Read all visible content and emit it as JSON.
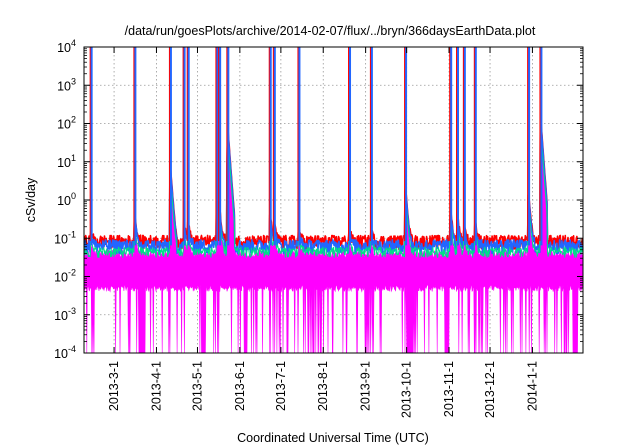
{
  "chart_data": {
    "type": "line",
    "title": "/data/run/goesPlots/archive/2014-02-07/flux/../bryn/366daysEarthData.plot",
    "xlabel": "Coordinated Universal Time (UTC)",
    "ylabel": "cSv/day",
    "y_scale": "log",
    "ylim": [
      0.0001,
      10000
    ],
    "y_ticks": [
      {
        "exp": "-4",
        "value": 0.0001
      },
      {
        "exp": "-3",
        "value": 0.001
      },
      {
        "exp": "-2",
        "value": 0.01
      },
      {
        "exp": "-1",
        "value": 0.1
      },
      {
        "exp": "0",
        "value": 1
      },
      {
        "exp": "1",
        "value": 10
      },
      {
        "exp": "2",
        "value": 100
      },
      {
        "exp": "3",
        "value": 1000
      },
      {
        "exp": "4",
        "value": 10000
      }
    ],
    "y_tick_base": "10",
    "xlim": [
      "2013-02-07",
      "2014-02-07"
    ],
    "x_ticks": [
      {
        "label": "2013-3-1",
        "date": "2013-03-01"
      },
      {
        "label": "2013-4-1",
        "date": "2013-04-01"
      },
      {
        "label": "2013-5-1",
        "date": "2013-05-01"
      },
      {
        "label": "2013-6-1",
        "date": "2013-06-01"
      },
      {
        "label": "2013-7-1",
        "date": "2013-07-01"
      },
      {
        "label": "2013-8-1",
        "date": "2013-08-01"
      },
      {
        "label": "2013-9-1",
        "date": "2013-09-01"
      },
      {
        "label": "2013-10-1",
        "date": "2013-10-01"
      },
      {
        "label": "2013-11-1",
        "date": "2013-11-01"
      },
      {
        "label": "2013-12-1",
        "date": "2013-12-01"
      },
      {
        "label": "2014-1-1",
        "date": "2014-01-01"
      }
    ],
    "grid": true,
    "series": [
      {
        "color": "#ff0000",
        "baseline": 0.085,
        "peak_factor": 1.0
      },
      {
        "color": "#2266ff",
        "baseline": 0.065,
        "peak_factor": 0.85
      },
      {
        "color": "#00dd88",
        "baseline": 0.045,
        "peak_factor": 0.5
      },
      {
        "color": "#ff00ff",
        "baseline": 0.04,
        "low": 0.005,
        "drop_to": 0.0001
      }
    ],
    "events": [
      {
        "date": "2013-02-12",
        "peak": 0.1
      },
      {
        "date": "2013-03-16",
        "peak": 0.45
      },
      {
        "date": "2013-04-11",
        "peak": 10
      },
      {
        "date": "2013-04-21",
        "peak": 0.25
      },
      {
        "date": "2013-04-24",
        "peak": 0.3
      },
      {
        "date": "2013-05-15",
        "peak": 1.7
      },
      {
        "date": "2013-05-17",
        "peak": 0.8
      },
      {
        "date": "2013-05-23",
        "peak": 100
      },
      {
        "date": "2013-06-23",
        "peak": 0.5
      },
      {
        "date": "2013-06-26",
        "peak": 0.3
      },
      {
        "date": "2013-07-14",
        "peak": 0.15
      },
      {
        "date": "2013-08-20",
        "peak": 0.15
      },
      {
        "date": "2013-09-05",
        "peak": 0.12
      },
      {
        "date": "2013-09-30",
        "peak": 3
      },
      {
        "date": "2013-11-02",
        "peak": 0.7
      },
      {
        "date": "2013-11-07",
        "peak": 0.5
      },
      {
        "date": "2013-11-12",
        "peak": 0.2
      },
      {
        "date": "2013-11-20",
        "peak": 0.3
      },
      {
        "date": "2013-12-29",
        "peak": 2
      },
      {
        "date": "2014-01-07",
        "peak": 150
      }
    ],
    "magenta_gaps": [
      {
        "from": "2013-03-19",
        "to": "2013-03-24"
      },
      {
        "from": "2013-05-04",
        "to": "2013-05-07"
      },
      {
        "from": "2013-06-04",
        "to": "2013-06-06"
      },
      {
        "from": "2013-10-01",
        "to": "2013-10-06"
      },
      {
        "from": "2013-10-29",
        "to": "2013-11-01"
      },
      {
        "from": "2014-01-31",
        "to": "2014-02-03"
      }
    ]
  }
}
